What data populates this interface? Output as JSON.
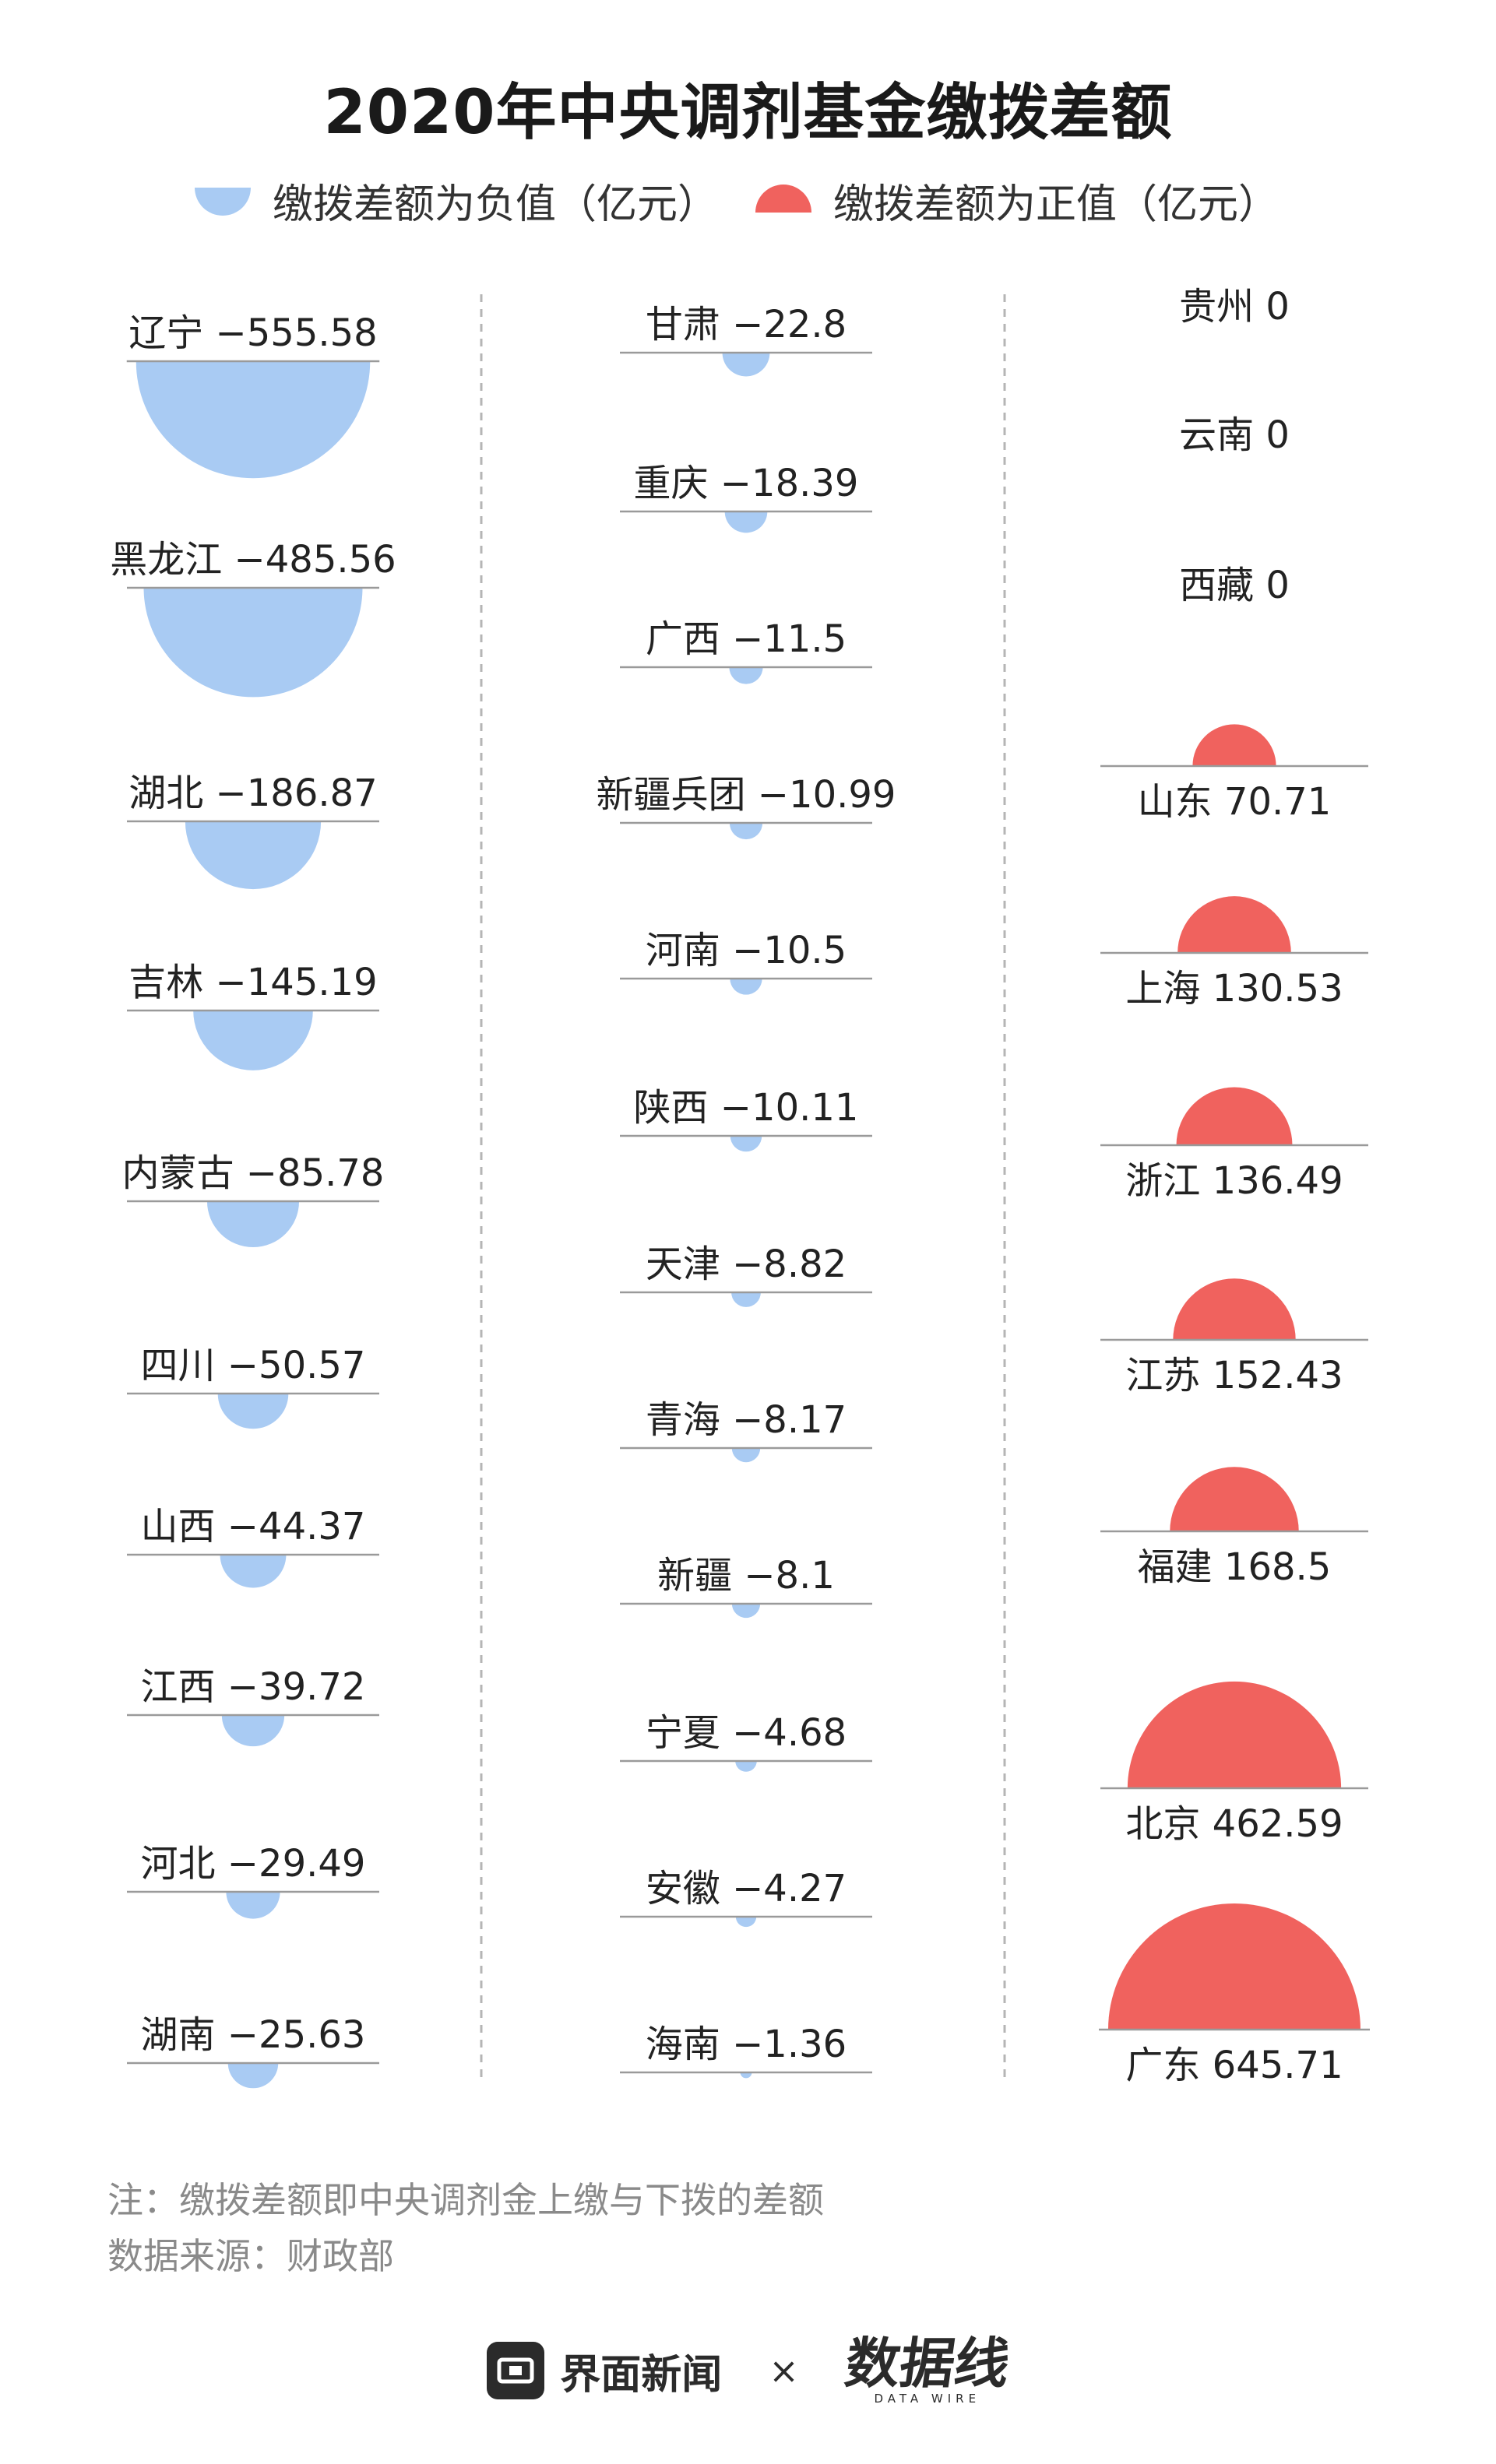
{
  "title": "2020年中央调剂基金缴拨差额",
  "legend": {
    "negative_label": "缴拨差额为负值（亿元）",
    "positive_label": "缴拨差额为正值（亿元）"
  },
  "colors": {
    "negative": "#a9cbf3",
    "positive": "#f0625e",
    "baseline": "#9a9a9a",
    "divider": "#b5b5b5"
  },
  "chart_data": {
    "type": "semicircle",
    "columns": [
      {
        "items": [
          {
            "name": "辽宁",
            "value": -555.58
          },
          {
            "name": "黑龙江",
            "value": -485.56
          },
          {
            "name": "湖北",
            "value": -186.87
          },
          {
            "name": "吉林",
            "value": -145.19
          },
          {
            "name": "内蒙古",
            "value": -85.78
          },
          {
            "name": "四川",
            "value": -50.57
          },
          {
            "name": "山西",
            "value": -44.37
          },
          {
            "name": "江西",
            "value": -39.72
          },
          {
            "name": "河北",
            "value": -29.49
          },
          {
            "name": "湖南",
            "value": -25.63
          }
        ]
      },
      {
        "items": [
          {
            "name": "甘肃",
            "value": -22.8
          },
          {
            "name": "重庆",
            "value": -18.39
          },
          {
            "name": "广西",
            "value": -11.5
          },
          {
            "name": "新疆兵团",
            "value": -10.99
          },
          {
            "name": "河南",
            "value": -10.5
          },
          {
            "name": "陕西",
            "value": -10.11
          },
          {
            "name": "天津",
            "value": -8.82
          },
          {
            "name": "青海",
            "value": -8.17
          },
          {
            "name": "新疆",
            "value": -8.1
          },
          {
            "name": "宁夏",
            "value": -4.68
          },
          {
            "name": "安徽",
            "value": -4.27
          },
          {
            "name": "海南",
            "value": -1.36
          }
        ]
      },
      {
        "items": [
          {
            "name": "贵州",
            "value": 0
          },
          {
            "name": "云南",
            "value": 0
          },
          {
            "name": "西藏",
            "value": 0
          },
          {
            "name": "山东",
            "value": 70.71
          },
          {
            "name": "上海",
            "value": 130.53
          },
          {
            "name": "浙江",
            "value": 136.49
          },
          {
            "name": "江苏",
            "value": 152.43
          },
          {
            "name": "福建",
            "value": 168.5
          },
          {
            "name": "北京",
            "value": 462.59
          },
          {
            "name": "广东",
            "value": 645.71
          }
        ]
      }
    ]
  },
  "note": "注：缴拨差额即中央调剂金上缴与下拨的差额",
  "source": "数据来源：财政部",
  "footer": {
    "logo_name": "界面新闻",
    "times": "×",
    "brand2": "数据线",
    "brand2_sub": "DATA WIRE"
  }
}
